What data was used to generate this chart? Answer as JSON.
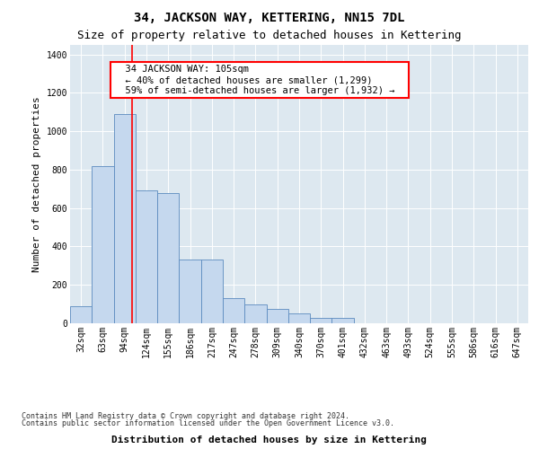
{
  "title": "34, JACKSON WAY, KETTERING, NN15 7DL",
  "subtitle": "Size of property relative to detached houses in Kettering",
  "xlabel": "Distribution of detached houses by size in Kettering",
  "ylabel": "Number of detached properties",
  "categories": [
    "32sqm",
    "63sqm",
    "94sqm",
    "124sqm",
    "155sqm",
    "186sqm",
    "217sqm",
    "247sqm",
    "278sqm",
    "309sqm",
    "340sqm",
    "370sqm",
    "401sqm",
    "432sqm",
    "463sqm",
    "493sqm",
    "524sqm",
    "555sqm",
    "586sqm",
    "616sqm",
    "647sqm"
  ],
  "values": [
    90,
    820,
    1090,
    690,
    680,
    330,
    330,
    130,
    100,
    75,
    50,
    30,
    30,
    0,
    0,
    0,
    0,
    0,
    0,
    0,
    0
  ],
  "bar_color": "#c5d8ee",
  "bar_edge_color": "#5b8bbf",
  "red_line_x": 1.72,
  "annotation_label": "34 JACKSON WAY: 105sqm",
  "annotation_line1": "← 40% of detached houses are smaller (1,299)",
  "annotation_line2": "59% of semi-detached houses are larger (1,932) →",
  "ylim": [
    0,
    1450
  ],
  "yticks": [
    0,
    200,
    400,
    600,
    800,
    1000,
    1200,
    1400
  ],
  "grid_color": "#c8d4e0",
  "bg_color": "#dde8f0",
  "footer_line1": "Contains HM Land Registry data © Crown copyright and database right 2024.",
  "footer_line2": "Contains public sector information licensed under the Open Government Licence v3.0.",
  "title_fontsize": 10,
  "subtitle_fontsize": 9,
  "axis_label_fontsize": 8,
  "tick_fontsize": 7,
  "annotation_fontsize": 7.5
}
